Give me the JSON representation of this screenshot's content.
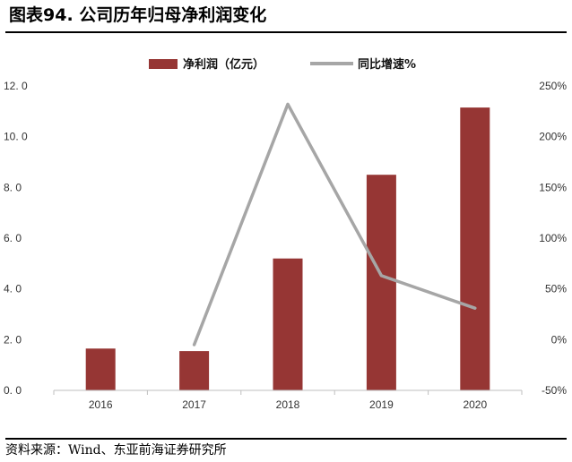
{
  "header": {
    "title": "图表94. 公司历年归母净利润变化"
  },
  "footer": {
    "source": "资料来源：Wind、东亚前海证券研究所"
  },
  "colors": {
    "bar": "#963634",
    "line": "#a6a6a6",
    "axis": "#bfbfbf",
    "text": "#333333"
  },
  "chart_data": {
    "type": "bar",
    "categories": [
      "2016",
      "2017",
      "2018",
      "2019",
      "2020"
    ],
    "series": [
      {
        "name": "净利润（亿元）",
        "type": "bar",
        "axis": "left",
        "values": [
          1.65,
          1.55,
          5.2,
          8.5,
          11.15
        ]
      },
      {
        "name": "同比增速%",
        "type": "line",
        "axis": "right",
        "values": [
          null,
          -5,
          232,
          63,
          31
        ]
      }
    ],
    "y_left": {
      "ylim": [
        0,
        12
      ],
      "ticks": [
        0,
        2,
        4,
        6,
        8,
        10,
        12
      ],
      "tick_labels": [
        "0. 0",
        "2. 0",
        "4. 0",
        "6. 0",
        "8. 0",
        "10. 0",
        "12. 0"
      ]
    },
    "y_right": {
      "ylim": [
        -50,
        250
      ],
      "ticks": [
        -50,
        0,
        50,
        100,
        150,
        200,
        250
      ],
      "tick_labels": [
        "-50%",
        "0%",
        "50%",
        "100%",
        "150%",
        "200%",
        "250%"
      ]
    },
    "legend_position": "top-center",
    "grid": false
  }
}
